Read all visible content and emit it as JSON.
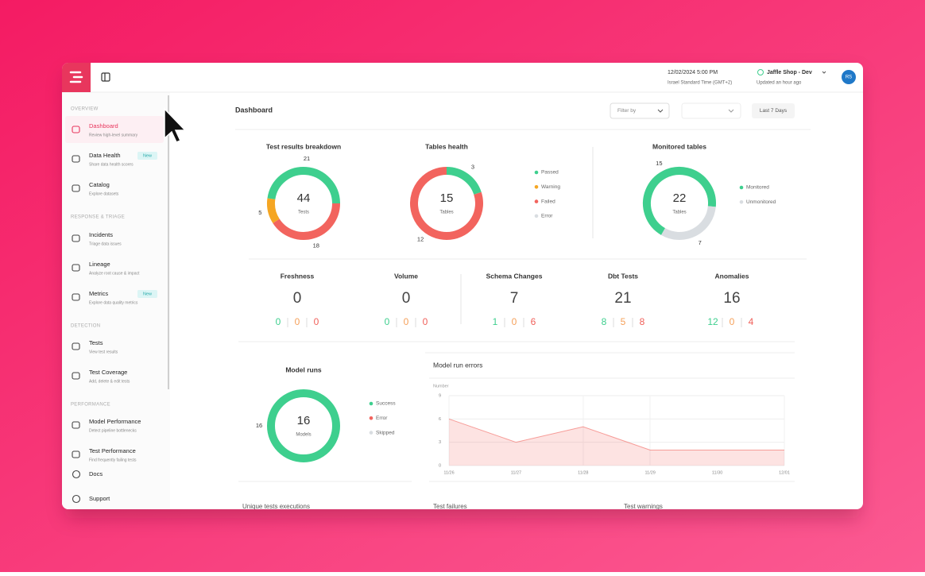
{
  "app": {
    "date": "12/02/2024 5:00 PM",
    "timezone": "Israel Standard Time (GMT+2)",
    "workspace": "Jaffle Shop - Dev",
    "updated": "Updated an hour ago",
    "avatar": "RS"
  },
  "sidebar": {
    "sections": [
      {
        "title": "OVERVIEW",
        "items": [
          {
            "label": "Dashboard",
            "sub": "Review high-level summary"
          },
          {
            "label": "Data Health",
            "sub": "Share data health scores",
            "badge": "New"
          },
          {
            "label": "Catalog",
            "sub": "Explore datasets"
          }
        ]
      },
      {
        "title": "RESPONSE & TRIAGE",
        "items": [
          {
            "label": "Incidents",
            "sub": "Triage data issues"
          },
          {
            "label": "Lineage",
            "sub": "Analyze root cause & impact"
          },
          {
            "label": "Metrics",
            "sub": "Explore data quality metrics",
            "badge": "New"
          }
        ]
      },
      {
        "title": "DETECTION",
        "items": [
          {
            "label": "Tests",
            "sub": "View test results"
          },
          {
            "label": "Test Coverage",
            "sub": "Add, delete & edit tests"
          }
        ]
      },
      {
        "title": "PERFORMANCE",
        "items": [
          {
            "label": "Model Performance",
            "sub": "Detect pipeline bottlenecks"
          },
          {
            "label": "Test Performance",
            "sub": "Find frequently failing tests"
          }
        ]
      }
    ],
    "footer": [
      "Docs",
      "Support"
    ]
  },
  "header": {
    "title": "Dashboard",
    "filter": "Filter by",
    "range": "Last 7 Days"
  },
  "donuts": [
    {
      "title": "Test results breakdown",
      "total": 44,
      "unit": "Tests",
      "segments": [
        {
          "value": 18,
          "color": "#f2645e"
        },
        {
          "value": 5,
          "color": "#f5a623"
        },
        {
          "value": 21,
          "color": "#3ecf8e"
        }
      ]
    },
    {
      "title": "Tables health",
      "total": 15,
      "unit": "Tables",
      "segments": [
        {
          "name": "Passed",
          "value": 3,
          "color": "#3ecf8e"
        },
        {
          "name": "Warning",
          "color": "#f5a623"
        },
        {
          "name": "Failed",
          "value": 12,
          "color": "#f2645e"
        },
        {
          "name": "Error",
          "color": "#d9dde1"
        }
      ]
    },
    {
      "title": "Monitored tables",
      "total": 22,
      "unit": "Tables",
      "segments": [
        {
          "name": "Monitored",
          "value": 15,
          "color": "#3ecf8e"
        },
        {
          "name": "Unmonitored",
          "value": 7,
          "color": "#d9dde1"
        }
      ]
    },
    {
      "title": "Model runs",
      "total": 16,
      "unit": "Models",
      "segments": [
        {
          "name": "Success",
          "value": 16,
          "color": "#3ecf8e"
        },
        {
          "name": "Error",
          "color": "#f2645e"
        },
        {
          "name": "Skipped",
          "color": "#d9dde1"
        }
      ]
    }
  ],
  "metrics": [
    {
      "title": "Freshness",
      "value": 0,
      "breakdown": [
        0,
        0,
        0
      ]
    },
    {
      "title": "Volume",
      "value": 0,
      "breakdown": [
        0,
        0,
        0
      ]
    },
    {
      "title": "Schema Changes",
      "value": 7,
      "breakdown": [
        1,
        0,
        6
      ]
    },
    {
      "title": "Dbt Tests",
      "value": 21,
      "breakdown": [
        8,
        5,
        8
      ]
    },
    {
      "title": "Anomalies",
      "value": 16,
      "breakdown": [
        12,
        0,
        4
      ]
    }
  ],
  "breakdown_colors": [
    "#3ecf8e",
    "#f5a05a",
    "#f0605a"
  ],
  "model_run_errors": {
    "title": "Model run errors",
    "y_label": "Number",
    "categories": [
      "11/26",
      "11/27",
      "11/28",
      "11/29",
      "11/30",
      "12/01"
    ],
    "values": [
      6,
      3,
      5,
      2,
      2,
      2
    ],
    "ylim": [
      0,
      9
    ],
    "yticks": [
      0,
      3,
      6,
      9
    ],
    "color": "#f2645e"
  },
  "bottom_titles": [
    "Unique tests executions",
    "Test failures",
    "Test warnings"
  ]
}
